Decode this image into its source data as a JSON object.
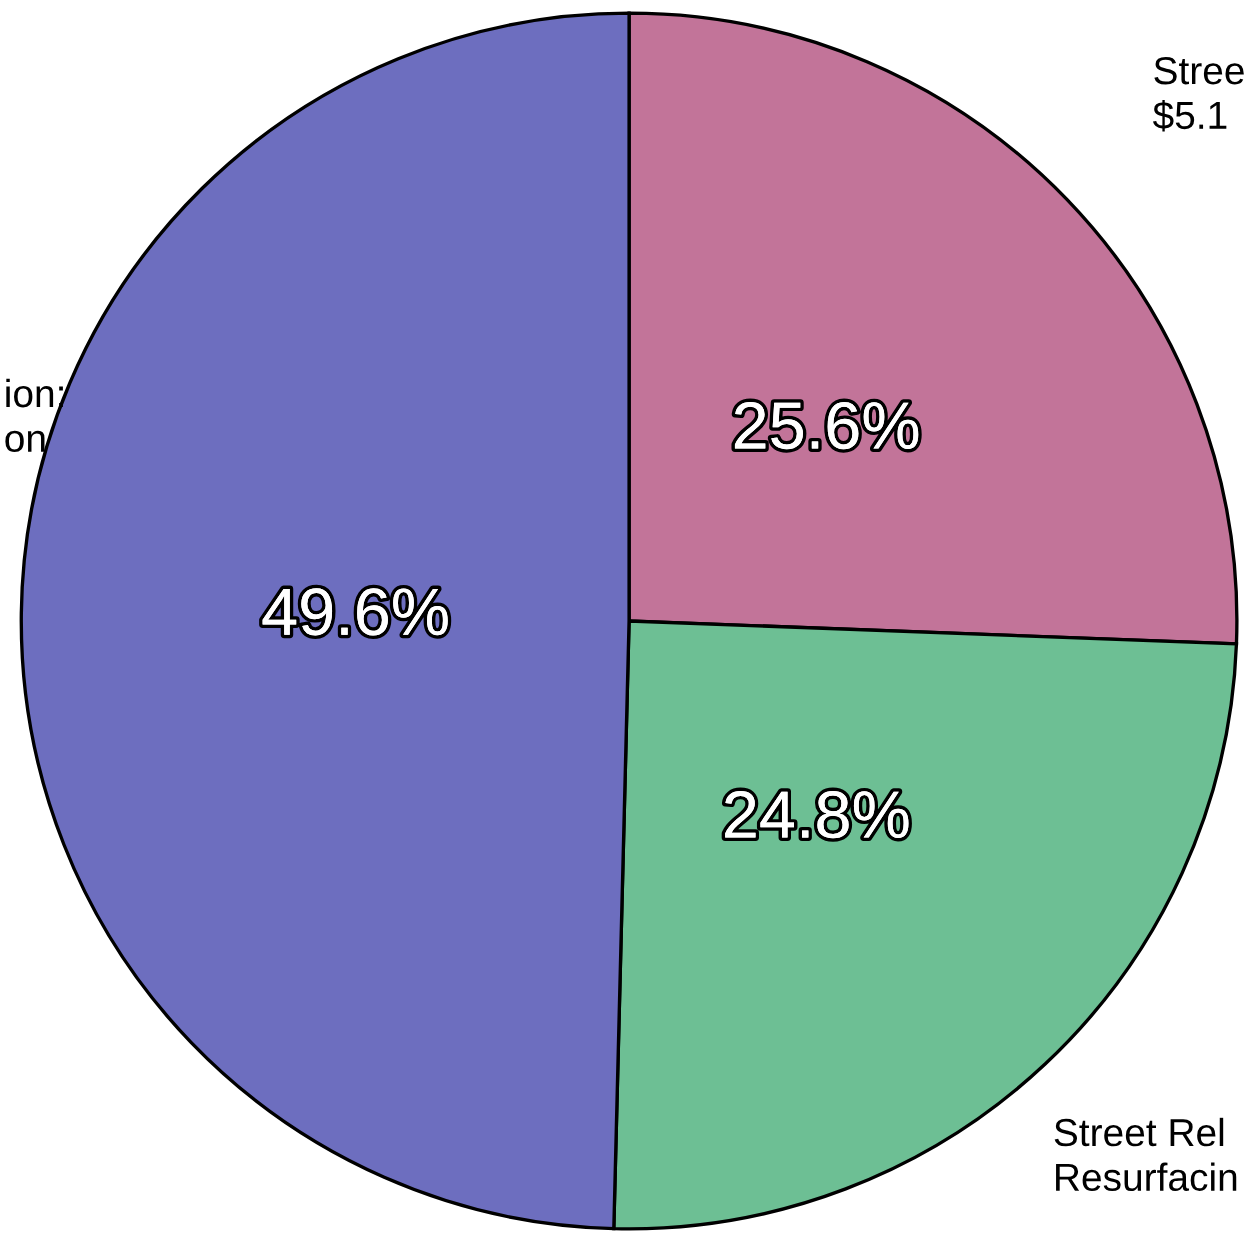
{
  "chart_data": {
    "type": "pie",
    "categories": [
      "Stree\n$5.1",
      "Street Rel\nResurfacin",
      "ion:\non"
    ],
    "values": [
      25.6,
      24.8,
      49.6
    ],
    "value_labels": [
      "25.6%",
      "24.8%",
      "49.6%"
    ],
    "colors": [
      "#c27499",
      "#6dbf94",
      "#6d6ebf"
    ]
  }
}
